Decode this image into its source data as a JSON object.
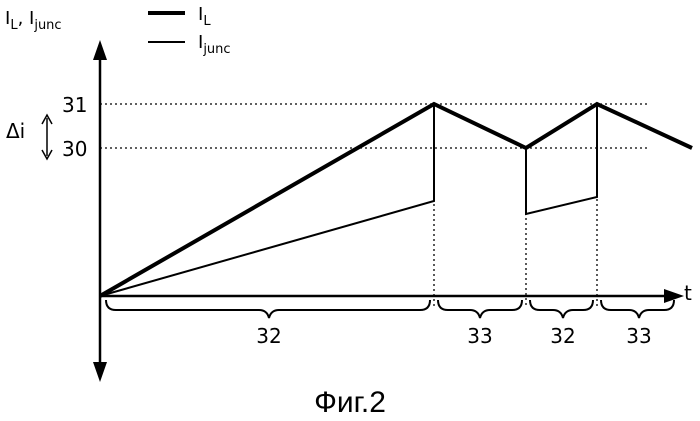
{
  "axes": {
    "y_label": "I",
    "y_label_sub1": "L",
    "y_label_sep": ", I",
    "y_label_sub2": "junc",
    "x_label": "t"
  },
  "legend": {
    "il_label": "I",
    "il_sub": "L",
    "ijunc_label": "I",
    "ijunc_sub": "junc"
  },
  "levels": {
    "upper": "31",
    "lower": "30",
    "delta": "Δi"
  },
  "intervals": [
    "32",
    "33",
    "32",
    "33"
  ],
  "caption": "Фиг.2"
}
